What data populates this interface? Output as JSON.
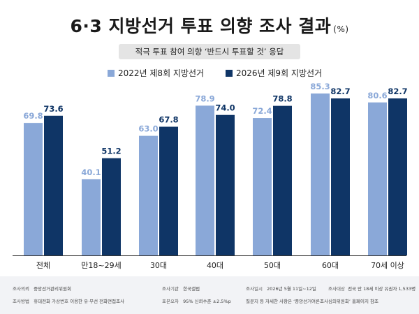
{
  "header": {
    "title": "6·3 지방선거 투표 의향 조사 결과",
    "unit": "(%)",
    "subtitle": "적극 투표 참여 의향 ‘반드시 투표할 것’ 응답"
  },
  "colors": {
    "series_2022": "#8aa8d8",
    "series_2026": "#0f3566",
    "axis": "#333333"
  },
  "chart_data": {
    "type": "bar",
    "title": "6·3 지방선거 투표 의향 조사 결과",
    "subtitle": "적극 투표 참여 의향 ‘반드시 투표할 것’ 응답",
    "unit": "(%)",
    "categories": [
      "전체",
      "만18~29세",
      "30대",
      "40대",
      "50대",
      "60대",
      "70세 이상"
    ],
    "series": [
      {
        "name": "2022년 제8회 지방선거",
        "values": [
          69.8,
          40.1,
          63.0,
          78.9,
          72.4,
          85.3,
          80.6
        ]
      },
      {
        "name": "2026년 제9회 지방선거",
        "values": [
          73.6,
          51.2,
          67.8,
          74.0,
          78.8,
          82.7,
          82.7
        ]
      }
    ],
    "legend": "top-center",
    "grid": false
  },
  "footer": {
    "commission_key": "조사의뢰",
    "commission_val": "중앙선거관리위원회",
    "agency_key": "조사기관",
    "agency_val": "한국갤럽",
    "date_key": "조사일시",
    "date_val": "2026년 5월 11일~12일",
    "target_key": "조사대상",
    "target_val": "전국 만 18세 이상 유권자 1,533명",
    "method_key": "조사방법",
    "method_val": "휴대전화 가상번호 이용한 유·무선 전화면접조사",
    "error_key": "표본오차",
    "error_val": "95% 신뢰수준 ±2.5%p",
    "note": "질문지 등 자세한 사항은 ‘중앙선거여론조사심의위원회’ 홈페이지 참조"
  }
}
